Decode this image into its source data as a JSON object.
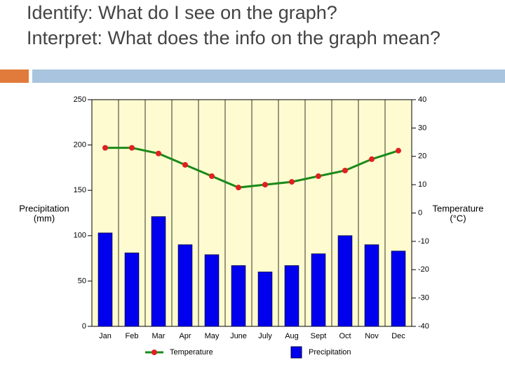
{
  "heading": [
    "Identify: What do I see on the graph?",
    "Interpret: What does the info on the graph mean?"
  ],
  "chart_data": {
    "type": "bar",
    "categories": [
      "Jan",
      "Feb",
      "Mar",
      "Apr",
      "May",
      "June",
      "July",
      "Aug",
      "Sept",
      "Oct",
      "Nov",
      "Dec"
    ],
    "series": [
      {
        "name": "Precipitation",
        "type": "bar",
        "color": "#0000ee",
        "values": [
          103,
          81,
          121,
          90,
          79,
          67,
          60,
          67,
          80,
          100,
          90,
          83
        ]
      },
      {
        "name": "Temperature",
        "type": "line",
        "axis": "y2",
        "color": "#1a8a1a",
        "marker_color": "#e02020",
        "values": [
          23,
          23,
          21,
          17,
          13,
          9,
          10,
          11,
          13,
          15,
          19,
          22
        ]
      }
    ],
    "ylabel": [
      "Precipitation",
      "(mm)"
    ],
    "y2label": [
      "Temperature",
      "(°C)"
    ],
    "ylim": [
      0,
      250
    ],
    "yticks": [
      0,
      50,
      100,
      150,
      200,
      250
    ],
    "y2lim": [
      -40,
      40
    ],
    "y2ticks": [
      -40,
      -30,
      -20,
      -10,
      0,
      10,
      20,
      30,
      40
    ],
    "grid": false,
    "legend": "bottom"
  }
}
